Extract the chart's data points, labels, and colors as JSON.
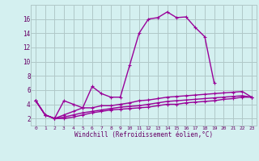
{
  "x": [
    0,
    1,
    2,
    3,
    4,
    5,
    6,
    7,
    8,
    9,
    10,
    11,
    12,
    13,
    14,
    15,
    16,
    17,
    18,
    19,
    20,
    21,
    22,
    23
  ],
  "line1": [
    4.5,
    2.5,
    2.0,
    4.5,
    4.0,
    3.5,
    6.5,
    5.5,
    5.0,
    5.0,
    9.5,
    14.0,
    16.0,
    16.2,
    17.0,
    16.2,
    16.3,
    14.8,
    13.5,
    7.0,
    null,
    null,
    null,
    null
  ],
  "line2": [
    4.5,
    2.5,
    2.0,
    2.5,
    3.0,
    3.5,
    3.5,
    3.8,
    3.8,
    4.0,
    4.2,
    4.5,
    4.6,
    4.8,
    5.0,
    5.1,
    5.2,
    5.3,
    5.4,
    5.5,
    5.6,
    5.7,
    5.8,
    5.0
  ],
  "line3": [
    4.5,
    2.5,
    2.0,
    2.2,
    2.5,
    2.8,
    3.0,
    3.2,
    3.4,
    3.6,
    3.7,
    3.8,
    4.0,
    4.2,
    4.4,
    4.5,
    4.6,
    4.7,
    4.8,
    4.9,
    5.0,
    5.1,
    5.2,
    5.0
  ],
  "line4": [
    4.5,
    2.5,
    2.0,
    2.0,
    2.2,
    2.5,
    2.8,
    3.0,
    3.2,
    3.3,
    3.4,
    3.5,
    3.6,
    3.8,
    4.0,
    4.0,
    4.2,
    4.3,
    4.4,
    4.5,
    4.7,
    4.8,
    5.0,
    5.0
  ],
  "xlabel": "Windchill (Refroidissement éolien,°C)",
  "line_color": "#990099",
  "bg_color": "#d4f0f0",
  "grid_color": "#b0c8c8",
  "tick_color": "#660066",
  "ylim": [
    1,
    18
  ],
  "yticks": [
    2,
    4,
    6,
    8,
    10,
    12,
    14,
    16
  ],
  "xticks": [
    0,
    1,
    2,
    3,
    4,
    5,
    6,
    7,
    8,
    9,
    10,
    11,
    12,
    13,
    14,
    15,
    16,
    17,
    18,
    19,
    20,
    21,
    22,
    23
  ]
}
